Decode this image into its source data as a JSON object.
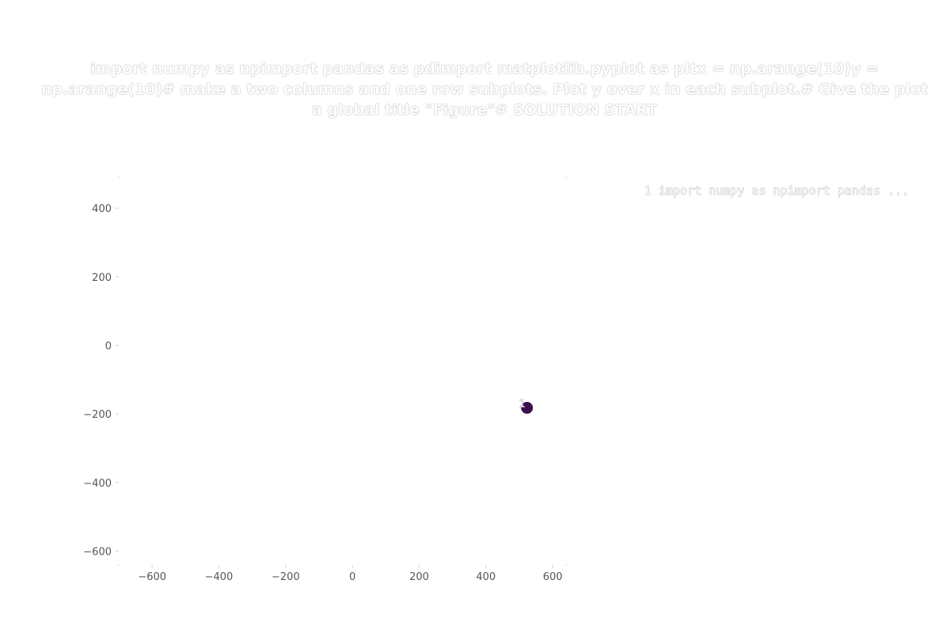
{
  "chart_data": {
    "type": "scatter",
    "title": "import numpy as npimport pandas as pdimport matplotlib.pyplot as pltx = np.arange(10)y = np.arange(10)# make a two columns and one row subplots. Plot y over x in each subplot.# Give the plot a global title \"Figure\"# SOLUTION START",
    "xlim": [
      -700,
      640
    ],
    "ylim": [
      -640,
      490
    ],
    "xticks": [
      -600,
      -400,
      -200,
      0,
      200,
      400,
      600
    ],
    "xtick_labels": [
      "−600",
      "−400",
      "−200",
      "0",
      "200",
      "400",
      "600"
    ],
    "yticks": [
      400,
      200,
      0,
      -200,
      -400,
      -600
    ],
    "ytick_labels": [
      "400",
      "200",
      "0",
      "−200",
      "−400",
      "−600"
    ],
    "points": [
      {
        "x": 523,
        "y": -182,
        "label": "1",
        "color": "#3b0f50"
      }
    ],
    "legend": {
      "placement": "top-right",
      "entries": [
        "1  import numpy as npimport pandas ..."
      ]
    },
    "grid": false
  }
}
